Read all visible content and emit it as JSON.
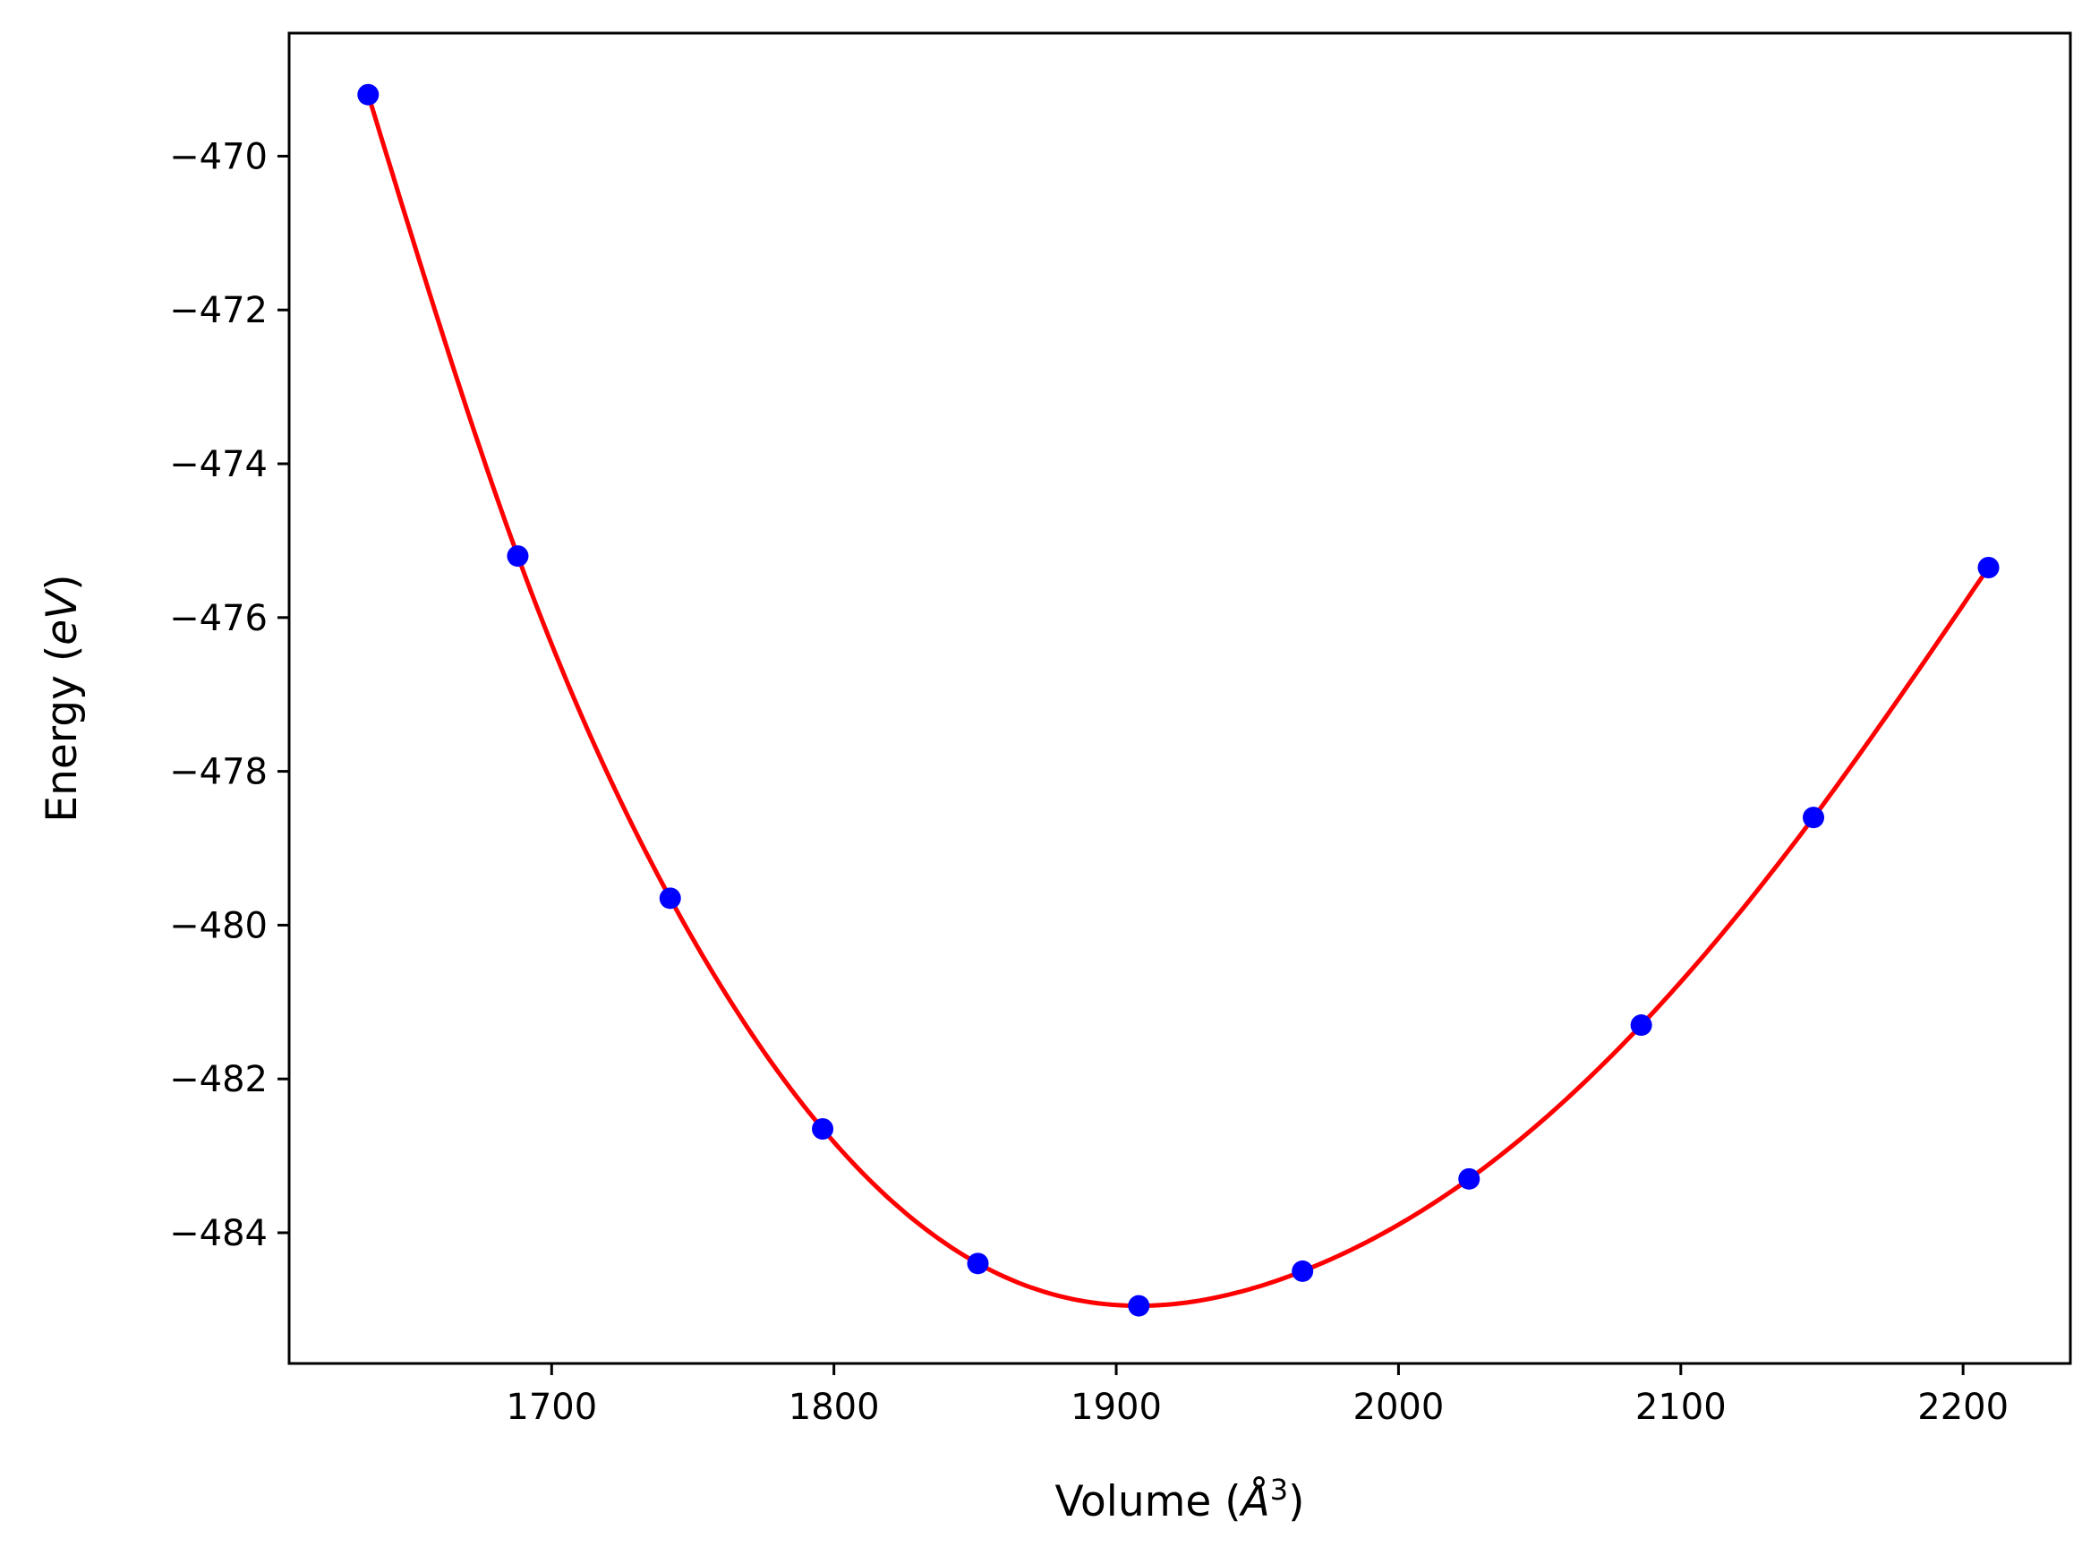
{
  "chart_data": {
    "type": "scatter",
    "xlabel_main": "Volume (",
    "xlabel_symbol": "Å",
    "xlabel_exponent": "3",
    "xlabel_close": ")",
    "ylabel_main": "Energy (",
    "ylabel_unit": "eV",
    "ylabel_close": ")",
    "xlim": [
      1607,
      2238
    ],
    "ylim": [
      -485.7,
      -468.4
    ],
    "xticks": [
      1700,
      1800,
      1900,
      2000,
      2100,
      2200
    ],
    "xtick_labels": [
      "1700",
      "1800",
      "1900",
      "2000",
      "2100",
      "2200"
    ],
    "yticks": [
      -470,
      -472,
      -474,
      -476,
      -478,
      -480,
      -482,
      -484
    ],
    "ytick_labels": [
      "−470",
      "−472",
      "−474",
      "−476",
      "−478",
      "−480",
      "−482",
      "−484"
    ],
    "series": [
      {
        "marker_color": "#0000ff",
        "x": [
          1635,
          1688,
          1742,
          1796,
          1851,
          1908,
          1966,
          2025,
          2086,
          2147,
          2209
        ],
        "y": [
          -469.2,
          -475.2,
          -479.65,
          -482.65,
          -484.4,
          -484.95,
          -484.5,
          -483.3,
          -481.3,
          -478.6,
          -475.35
        ]
      }
    ],
    "fit": {
      "line_color": "#ff0000",
      "model": "cubic spline through data points"
    },
    "grid": false
  }
}
